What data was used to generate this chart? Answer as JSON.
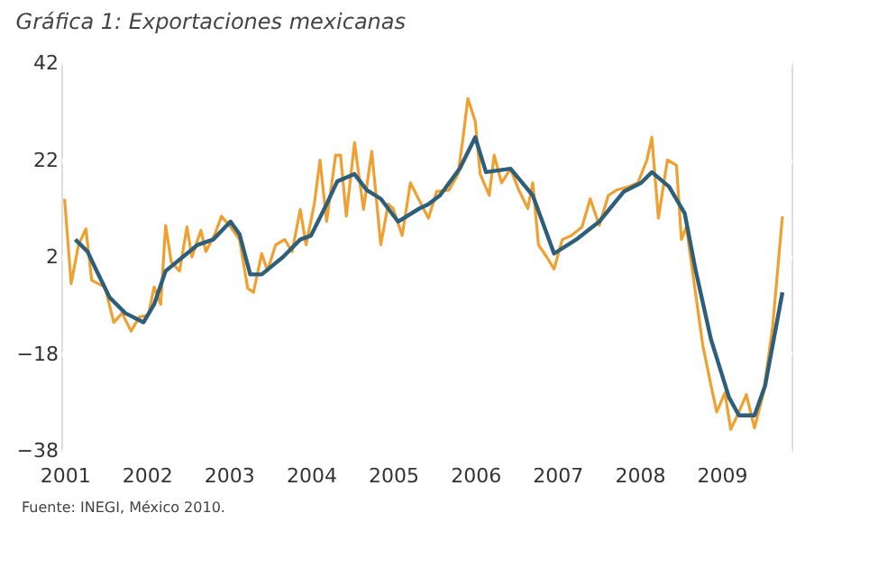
{
  "chart_data": {
    "type": "line",
    "title": "Gráfica 1: Exportaciones mexicanas",
    "annotations": [
      "Fuente: INEGI, México 2010."
    ],
    "xlim": [
      2000.96,
      2009.85
    ],
    "xticks": [
      2001,
      2002,
      2003,
      2004,
      2005,
      2006,
      2007,
      2008,
      2009
    ],
    "ylim": [
      -38,
      42
    ],
    "yticks": [
      -38,
      -18,
      2,
      22,
      42
    ],
    "grid": "y",
    "line_style": "solid",
    "series": [
      {
        "color": "#f0a030",
        "x": [
          2001.0,
          2001.08,
          2001.17,
          2001.26,
          2001.33,
          2001.49,
          2001.6,
          2001.7,
          2001.81,
          2001.91,
          2002.02,
          2002.09,
          2002.17,
          2002.23,
          2002.3,
          2002.4,
          2002.49,
          2002.55,
          2002.66,
          2002.72,
          2002.83,
          2002.91,
          2003.02,
          2003.13,
          2003.23,
          2003.3,
          2003.4,
          2003.47,
          2003.57,
          2003.68,
          2003.77,
          2003.87,
          2003.94,
          2004.04,
          2004.11,
          2004.19,
          2004.3,
          2004.36,
          2004.43,
          2004.53,
          2004.64,
          2004.74,
          2004.85,
          2004.94,
          2005.0,
          2005.11,
          2005.21,
          2005.32,
          2005.43,
          2005.53,
          2005.68,
          2005.79,
          2005.85,
          2005.91,
          2006.0,
          2006.06,
          2006.17,
          2006.23,
          2006.32,
          2006.43,
          2006.53,
          2006.64,
          2006.7,
          2006.77,
          2006.87,
          2006.96,
          2007.06,
          2007.17,
          2007.3,
          2007.4,
          2007.51,
          2007.62,
          2007.72,
          2007.87,
          2007.98,
          2008.09,
          2008.15,
          2008.23,
          2008.34,
          2008.45,
          2008.51,
          2008.57,
          2008.66,
          2008.77,
          2008.87,
          2008.94,
          2009.04,
          2009.11,
          2009.21,
          2009.3,
          2009.4,
          2009.51,
          2009.62,
          2009.74
        ],
        "values": [
          14,
          -3.5,
          4.5,
          7.8,
          -2.8,
          -4.2,
          -11.5,
          -9.6,
          -13.3,
          -10.4,
          -10,
          -4.2,
          -7.8,
          8.5,
          0.9,
          -0.9,
          8.2,
          2,
          7.5,
          3.1,
          6.7,
          10.4,
          8.2,
          5.6,
          -4.5,
          -5.3,
          2.7,
          -0.9,
          4.5,
          5.6,
          3.1,
          11.8,
          4.5,
          12.9,
          22,
          9.3,
          23,
          23,
          10.4,
          25.6,
          11.8,
          23.8,
          4.5,
          12.9,
          12,
          6.4,
          17.3,
          13.6,
          10,
          15.5,
          15.8,
          19.1,
          26.4,
          34.7,
          30,
          19.1,
          14.7,
          23,
          17.3,
          20.2,
          15.8,
          12,
          17.3,
          4.5,
          2,
          -0.5,
          5.6,
          6.4,
          8.2,
          14,
          8.5,
          14.7,
          15.8,
          16.5,
          17.3,
          22,
          26.7,
          10,
          22,
          20.9,
          5.6,
          8.2,
          -2.8,
          -16.2,
          -24.5,
          -30,
          -26,
          -33.6,
          -30,
          -26.4,
          -33.3,
          -26,
          -12.5,
          10.4
        ]
      },
      {
        "color": "#2e5f7a",
        "x": [
          2001.13,
          2001.28,
          2001.38,
          2001.55,
          2001.74,
          2001.96,
          2002.09,
          2002.23,
          2002.49,
          2002.62,
          2002.81,
          2003.02,
          2003.13,
          2003.26,
          2003.4,
          2003.66,
          2003.87,
          2004.0,
          2004.19,
          2004.32,
          2004.53,
          2004.68,
          2004.85,
          2005.06,
          2005.32,
          2005.43,
          2005.57,
          2005.81,
          2006.0,
          2006.13,
          2006.43,
          2006.7,
          2006.96,
          2007.23,
          2007.51,
          2007.81,
          2008.02,
          2008.15,
          2008.36,
          2008.55,
          2008.68,
          2008.87,
          2009.09,
          2009.21,
          2009.4,
          2009.53,
          2009.74
        ],
        "values": [
          5.6,
          3.1,
          -0.5,
          -6.4,
          -9.6,
          -11.5,
          -7.8,
          -0.9,
          2.7,
          4.5,
          5.6,
          9.3,
          6.7,
          -1.6,
          -1.6,
          2,
          5.6,
          6.4,
          12.9,
          17.6,
          19.1,
          15.8,
          14,
          9.3,
          12,
          12.9,
          14.7,
          20.2,
          26.7,
          19.5,
          20.2,
          14.7,
          2.7,
          5.6,
          9.3,
          15.5,
          17.3,
          19.5,
          16.5,
          11,
          -0.5,
          -15,
          -27,
          -30.7,
          -30.7,
          -24.5,
          -5.3
        ]
      }
    ]
  }
}
